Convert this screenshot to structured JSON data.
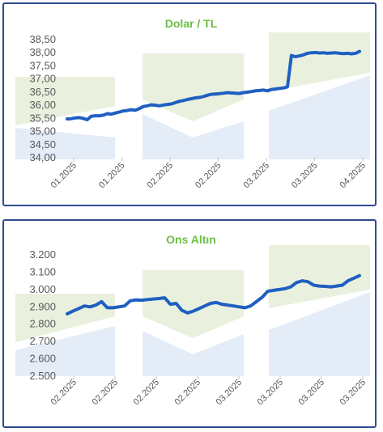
{
  "charts": [
    {
      "type": "line",
      "title": "Dolar / TL",
      "y_ticks": [
        "34,00",
        "34,50",
        "35,00",
        "35,50",
        "36,00",
        "36,50",
        "37,00",
        "37,50",
        "38,00",
        "38,50"
      ],
      "ylim": [
        34.0,
        38.5
      ],
      "x_tick_labels": [
        "01.2025",
        "01.2025",
        "02.2025",
        "02.2025",
        "03.2025",
        "03.2025",
        "04.2025"
      ],
      "line_color": "#1f5fc1",
      "values": [
        35.48,
        35.49,
        35.52,
        35.53,
        35.5,
        35.45,
        35.58,
        35.6,
        35.6,
        35.62,
        35.68,
        35.66,
        35.7,
        35.74,
        35.78,
        35.8,
        35.83,
        35.81,
        35.87,
        35.95,
        35.98,
        36.02,
        36.0,
        35.98,
        36.01,
        36.03,
        36.05,
        36.1,
        36.15,
        36.18,
        36.22,
        36.25,
        36.28,
        36.3,
        36.33,
        36.38,
        36.42,
        36.43,
        36.44,
        36.46,
        36.48,
        36.47,
        36.46,
        36.45,
        36.48,
        36.5,
        36.52,
        36.55,
        36.56,
        36.58,
        36.55,
        36.6,
        36.62,
        36.64,
        36.66,
        36.7,
        37.9,
        37.85,
        37.88,
        37.92,
        37.98,
        38.0,
        38.01,
        37.99,
        38.0,
        37.98,
        37.99,
        38.0,
        37.98,
        37.97,
        37.98,
        37.96,
        37.98,
        38.05
      ]
    },
    {
      "type": "line",
      "title": "Ons Altın",
      "y_ticks": [
        "2.500",
        "2.600",
        "2.700",
        "2.800",
        "2.900",
        "3.000",
        "3.100",
        "3.200"
      ],
      "ylim": [
        2500,
        3200
      ],
      "x_tick_labels": [
        "02.2025",
        "02.2025",
        "02.2025",
        "02.2025",
        "03.2025",
        "03.2025",
        "03.2025",
        "03.2025"
      ],
      "line_color": "#1f5fc1",
      "values": [
        2860,
        2875,
        2890,
        2905,
        2900,
        2910,
        2930,
        2895,
        2895,
        2900,
        2905,
        2935,
        2940,
        2938,
        2942,
        2945,
        2948,
        2952,
        2915,
        2920,
        2880,
        2865,
        2875,
        2890,
        2905,
        2920,
        2925,
        2915,
        2910,
        2905,
        2900,
        2895,
        2905,
        2930,
        2955,
        2990,
        2995,
        3000,
        3005,
        3015,
        3040,
        3050,
        3045,
        3025,
        3020,
        3018,
        3015,
        3020,
        3025,
        3050,
        3065,
        3080
      ]
    }
  ]
}
